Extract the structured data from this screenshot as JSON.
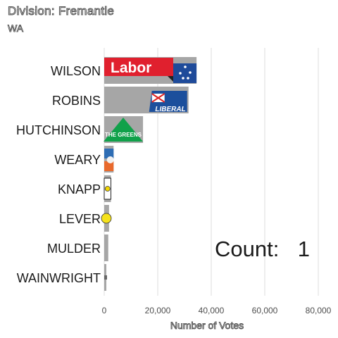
{
  "chart_data": {
    "type": "bar",
    "orientation": "horizontal",
    "title": "Division: Fremantle",
    "subtitle": "WA",
    "xlabel": "Number of Votes",
    "ylabel": "",
    "xlim": [
      0,
      84000
    ],
    "x_ticks": [
      0,
      20000,
      40000,
      60000,
      80000
    ],
    "x_tick_labels": [
      "0",
      "20,000",
      "40,000",
      "60,000",
      "80,000"
    ],
    "grid": true,
    "categories": [
      "WILSON",
      "ROBINS",
      "HUTCHINSON",
      "WEARY",
      "KNAPP",
      "LEVER",
      "MULDER",
      "WAINWRIGHT"
    ],
    "values": [
      34500,
      31500,
      14500,
      3500,
      2500,
      1800,
      1500,
      800
    ],
    "party_logos": [
      {
        "name": "Labor",
        "text": "Labor",
        "color": "#e0202e"
      },
      {
        "name": "Liberal",
        "text": "LIBERAL",
        "color": "#1c4f9c"
      },
      {
        "name": "The Greens",
        "text": "THE GREENS",
        "color": "#10a14a"
      },
      {
        "name": "other-blue-orange",
        "text": "",
        "color": "#2e6db4"
      },
      {
        "name": "other-yellow",
        "text": "",
        "color": "#f2d600"
      },
      {
        "name": "other-yellow-circle",
        "text": "",
        "color": "#f5e21c"
      },
      {
        "name": "none",
        "text": "",
        "color": ""
      },
      {
        "name": "other-small",
        "text": "",
        "color": "#666666"
      }
    ],
    "bar_color": "#a6a6a6",
    "annotation": {
      "label": "Count:",
      "value": "1"
    }
  }
}
